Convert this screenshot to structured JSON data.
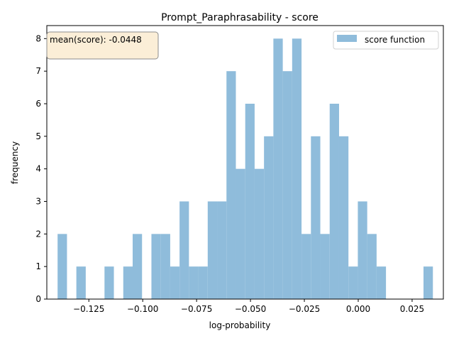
{
  "chart_data": {
    "type": "bar",
    "title": "Prompt_Paraphrasability - score",
    "xlabel": "log-probability",
    "ylabel": "frequency",
    "xlim": [
      -0.1445,
      0.0395
    ],
    "ylim": [
      0,
      8.4
    ],
    "xticks": [
      -0.125,
      -0.1,
      -0.075,
      -0.05,
      -0.025,
      0.0,
      0.025
    ],
    "xtick_labels": [
      "−0.125",
      "−0.100",
      "−0.075",
      "−0.050",
      "−0.025",
      "0.000",
      "0.025"
    ],
    "yticks": [
      0,
      1,
      2,
      3,
      4,
      5,
      6,
      7,
      8
    ],
    "ytick_labels": [
      "0",
      "1",
      "2",
      "3",
      "4",
      "5",
      "6",
      "7",
      "8"
    ],
    "bin_start": -0.1395,
    "bin_width": 0.0043535,
    "counts": [
      2,
      0,
      1,
      0,
      0,
      1,
      0,
      1,
      2,
      0,
      2,
      2,
      1,
      3,
      1,
      1,
      3,
      3,
      7,
      4,
      6,
      4,
      5,
      8,
      7,
      8,
      2,
      5,
      2,
      6,
      5,
      1,
      3,
      2,
      1,
      0,
      0,
      0,
      0,
      1
    ],
    "series": [
      {
        "name": "score function",
        "color": "#8fbcdb"
      }
    ],
    "legend_position": "upper right",
    "annotation": "mean(score): -0.0448",
    "grid": false
  }
}
